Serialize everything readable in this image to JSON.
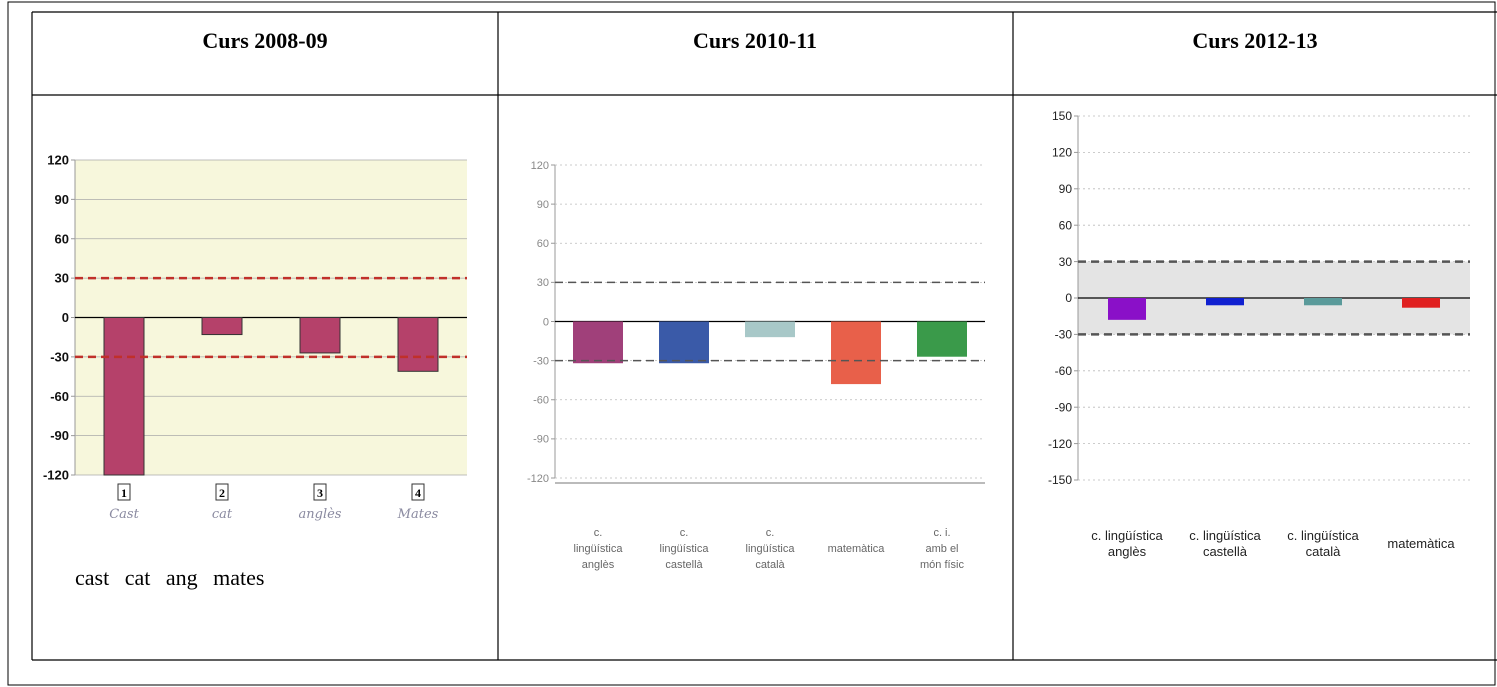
{
  "table": {
    "headers": [
      "Curs 2008-09",
      "Curs 2010-11",
      "Curs 2012-13"
    ]
  },
  "handwritten_labels": [
    "Cast",
    "cat",
    "anglès",
    "Mates"
  ],
  "caption": "cast cat ang mates",
  "chart_data": [
    {
      "type": "bar",
      "categories": [
        "1",
        "2",
        "3",
        "4"
      ],
      "values": [
        -120,
        -13,
        -27,
        -41
      ],
      "color": "#b5416a",
      "ylim": [
        -120,
        120
      ],
      "yticks": [
        120,
        90,
        60,
        30,
        0,
        -30,
        -60,
        -90,
        -120
      ],
      "grid": "solid",
      "plot_background": "#f7f7dc",
      "reference_lines": [
        30,
        -30
      ],
      "reference_line_color": "#c0302a"
    },
    {
      "type": "bar",
      "categories": [
        [
          "c.",
          "lingüística",
          "anglès"
        ],
        [
          "c.",
          "lingüística",
          "castellà"
        ],
        [
          "c.",
          "lingüística",
          "català"
        ],
        [
          "matemàtica"
        ],
        [
          "c. i.",
          "amb el",
          "món físic"
        ]
      ],
      "values": [
        -32,
        -32,
        -12,
        -48,
        -27
      ],
      "colors": [
        "#a0407a",
        "#3a5aa8",
        "#a8c8c8",
        "#e8604a",
        "#3a9a4a"
      ],
      "ylim": [
        -120,
        120
      ],
      "yticks": [
        120,
        90,
        60,
        30,
        0,
        -30,
        -60,
        -90,
        -120
      ],
      "grid": "dotted",
      "reference_lines": [
        30,
        -30
      ],
      "reference_line_color": "#555555"
    },
    {
      "type": "bar",
      "categories": [
        [
          "c. lingüística",
          "anglès"
        ],
        [
          "c. lingüística",
          "castellà"
        ],
        [
          "c. lingüística",
          "català"
        ],
        [
          "matemàtica"
        ]
      ],
      "values": [
        -18,
        -6,
        -6,
        -8
      ],
      "colors": [
        "#8a10c8",
        "#1020d0",
        "#5a9a9a",
        "#e02020"
      ],
      "ylim": [
        -150,
        150
      ],
      "yticks": [
        150,
        120,
        90,
        60,
        30,
        0,
        -30,
        -60,
        -90,
        -120,
        -150
      ],
      "grid": "dotted",
      "reference_lines": [
        30,
        -30
      ],
      "reference_line_color": "#555555",
      "band_color": "#e4e4e4"
    }
  ]
}
